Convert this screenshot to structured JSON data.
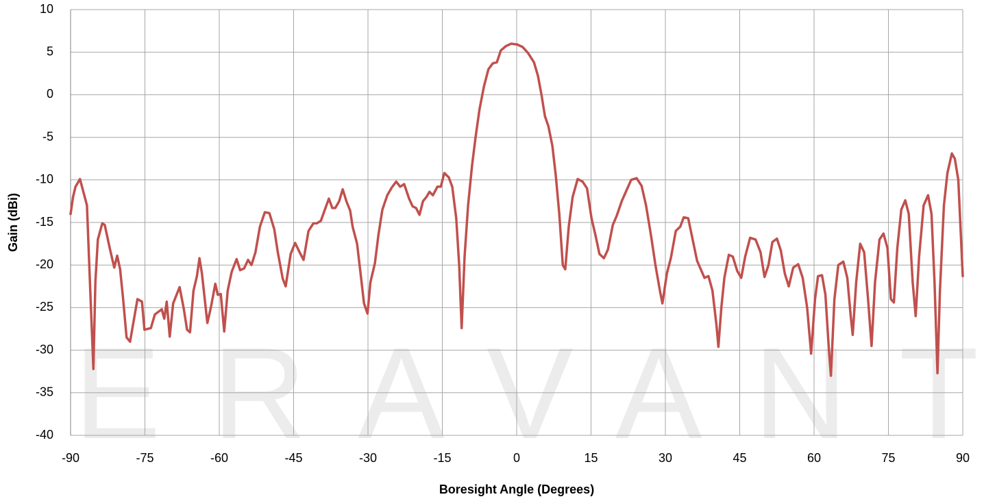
{
  "chart_data": {
    "type": "line",
    "watermark": "ERAVANT",
    "x_label": "Boresight Angle (Degrees)",
    "y_label": "Gain (dBi)",
    "xlim": [
      -90,
      90
    ],
    "xticks": [
      -90,
      -75,
      -60,
      -45,
      -30,
      -15,
      0,
      15,
      30,
      45,
      60,
      75,
      90
    ],
    "ylim": [
      -40,
      10
    ],
    "yticks": [
      -40,
      -35,
      -30,
      -25,
      -20,
      -15,
      -10,
      -5,
      0,
      5,
      10
    ],
    "grid": true,
    "series": [
      {
        "color": "#c0504d",
        "x": [
          -90,
          -89.5,
          -89,
          -88.1,
          -86.7,
          -85.9,
          -85.4,
          -85.0,
          -84.5,
          -83.6,
          -83.1,
          -82.1,
          -81.2,
          -80.6,
          -80.0,
          -79.4,
          -78.7,
          -78.0,
          -77.1,
          -76.5,
          -75.6,
          -75.1,
          -73.8,
          -73.0,
          -71.6,
          -71.1,
          -70.6,
          -70.0,
          -69.3,
          -68.0,
          -67.2,
          -66.5,
          -65.9,
          -65.2,
          -64.5,
          -64.0,
          -63.5,
          -62.4,
          -61.7,
          -60.8,
          -60.3,
          -59.7,
          -59.0,
          -58.3,
          -57.5,
          -56.5,
          -55.8,
          -55.0,
          -54.2,
          -53.5,
          -52.7,
          -51.8,
          -50.8,
          -49.9,
          -48.9,
          -48.2,
          -47.2,
          -46.6,
          -45.6,
          -44.7,
          -43.8,
          -43.0,
          -42.0,
          -41.0,
          -40.3,
          -39.5,
          -38.7,
          -37.9,
          -37.2,
          -36.6,
          -35.8,
          -35.1,
          -34.3,
          -33.6,
          -33.1,
          -32.2,
          -31.5,
          -30.8,
          -30.1,
          -29.5,
          -28.6,
          -27.9,
          -27.1,
          -26.1,
          -25.2,
          -24.3,
          -23.5,
          -22.7,
          -21.7,
          -21.0,
          -20.3,
          -19.6,
          -18.9,
          -18.2,
          -17.6,
          -16.9,
          -16.0,
          -15.3,
          -14.6,
          -13.7,
          -13.0,
          -12.2,
          -11.6,
          -11.1,
          -10.5,
          -9.8,
          -9.0,
          -8.3,
          -7.5,
          -6.6,
          -5.7,
          -4.8,
          -4.0,
          -3.2,
          -2.2,
          -1.1,
          0.1,
          1.2,
          2.3,
          3.5,
          4.3,
          5.0,
          5.7,
          6.4,
          7.2,
          7.9,
          8.6,
          9.3,
          9.8,
          10.5,
          11.3,
          12.3,
          13.3,
          14.2,
          15.1,
          15.9,
          16.7,
          17.6,
          18.4,
          19.4,
          20.2,
          21.2,
          22.1,
          23.1,
          24.2,
          25.2,
          26.1,
          27.1,
          28.0,
          28.9,
          29.4,
          30.3,
          31.1,
          32.1,
          33.0,
          33.7,
          34.6,
          35.5,
          36.4,
          37.0,
          37.9,
          38.7,
          39.5,
          40.3,
          40.7,
          41.3,
          41.9,
          42.8,
          43.6,
          44.5,
          45.3,
          46.1,
          47.1,
          48.2,
          49.2,
          50.0,
          50.8,
          51.6,
          52.5,
          53.3,
          54.1,
          54.9,
          55.8,
          56.8,
          57.7,
          58.6,
          59.4,
          60.2,
          60.8,
          61.6,
          62.3,
          63.0,
          63.4,
          64.1,
          64.9,
          65.9,
          66.7,
          67.4,
          67.8,
          68.5,
          69.3,
          70.1,
          70.9,
          71.6,
          72.3,
          73.2,
          74.0,
          74.8,
          75.5,
          76.1,
          76.8,
          77.6,
          78.4,
          79.1,
          79.9,
          80.5,
          81.2,
          82.1,
          83.0,
          83.7,
          84.3,
          84.9,
          85.4,
          86.2,
          86.9,
          87.8,
          88.4,
          89.1,
          90.0
        ],
        "values": [
          -14,
          -12,
          -10.8,
          -9.9,
          -13,
          -25,
          -32.2,
          -22,
          -17,
          -15.1,
          -15.3,
          -18,
          -20.3,
          -18.9,
          -20.5,
          -24,
          -28.5,
          -29,
          -26,
          -24,
          -24.3,
          -27.6,
          -27.4,
          -25.8,
          -25.2,
          -26.3,
          -24.3,
          -28.4,
          -24.5,
          -22.6,
          -25,
          -27.6,
          -27.9,
          -23,
          -21.3,
          -19.2,
          -21,
          -26.8,
          -25,
          -22.2,
          -23.5,
          -23.4,
          -27.8,
          -23,
          -20.8,
          -19.3,
          -20.6,
          -20.4,
          -19.4,
          -20,
          -18.5,
          -15.5,
          -13.8,
          -13.9,
          -15.8,
          -18.5,
          -21.6,
          -22.5,
          -18.7,
          -17.4,
          -18.5,
          -19.4,
          -16,
          -15.1,
          -15.1,
          -14.8,
          -13.5,
          -12.2,
          -13.3,
          -13.3,
          -12.5,
          -11.1,
          -12.6,
          -13.6,
          -15.5,
          -17.5,
          -21,
          -24.5,
          -25.7,
          -22,
          -19.8,
          -16.5,
          -13.5,
          -11.8,
          -10.9,
          -10.2,
          -10.8,
          -10.5,
          -12.2,
          -13.1,
          -13.3,
          -14.1,
          -12.5,
          -12.0,
          -11.4,
          -11.8,
          -10.8,
          -10.8,
          -9.2,
          -9.7,
          -10.8,
          -14.5,
          -20,
          -27.4,
          -19,
          -13,
          -8.3,
          -5,
          -1.7,
          1,
          3.0,
          3.7,
          3.8,
          5.2,
          5.7,
          6.0,
          5.9,
          5.6,
          4.9,
          3.8,
          2.2,
          0,
          -2.5,
          -3.7,
          -6,
          -9.5,
          -14,
          -20,
          -20.5,
          -15.5,
          -12,
          -9.9,
          -10.2,
          -11,
          -14.5,
          -16.5,
          -18.7,
          -19.2,
          -18.2,
          -15.3,
          -14.2,
          -12.5,
          -11.3,
          -10.0,
          -9.8,
          -10.7,
          -13,
          -16.5,
          -20,
          -23,
          -24.5,
          -21,
          -19.2,
          -16,
          -15.5,
          -14.4,
          -14.5,
          -17,
          -19.5,
          -20.3,
          -21.5,
          -21.3,
          -23,
          -27,
          -29.6,
          -25,
          -21.5,
          -18.8,
          -19,
          -20.7,
          -21.5,
          -19,
          -16.8,
          -17,
          -18.5,
          -21.4,
          -20,
          -17.3,
          -16.9,
          -18.3,
          -21,
          -22.5,
          -20.3,
          -19.9,
          -21.5,
          -25,
          -30.4,
          -24,
          -21.3,
          -21.2,
          -23.5,
          -30,
          -33,
          -24,
          -20,
          -19.6,
          -21.5,
          -26,
          -28.2,
          -22,
          -17.5,
          -18.5,
          -24,
          -29.5,
          -22,
          -17,
          -16.3,
          -18,
          -24,
          -24.4,
          -18,
          -13.5,
          -12.4,
          -14,
          -22,
          -26,
          -19,
          -13,
          -11.8,
          -14,
          -22,
          -32.7,
          -23,
          -13,
          -9.2,
          -6.9,
          -7.5,
          -10,
          -21.3
        ]
      }
    ]
  }
}
